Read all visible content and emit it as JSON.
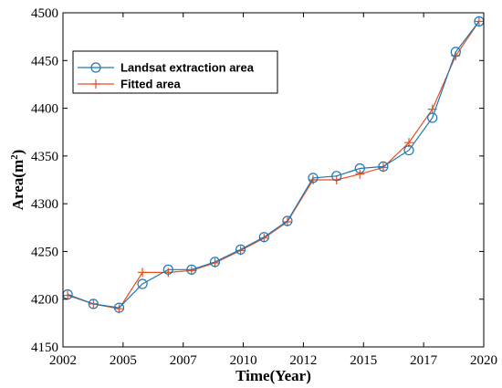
{
  "chart_data": {
    "type": "line",
    "xlabel": "Time(Year)",
    "ylabel_base": "Area(m",
    "ylabel_sup": "2",
    "ylabel_close": ")",
    "xlim": [
      2002,
      2020
    ],
    "ylim": [
      4150,
      4500
    ],
    "x_ticks": [
      "2002",
      "2005",
      "2007",
      "2010",
      "2012",
      "2015",
      "2017",
      "2020"
    ],
    "y_ticks": [
      "4150",
      "4200",
      "4250",
      "4300",
      "4350",
      "4400",
      "4450",
      "4500"
    ],
    "grid": false,
    "legend_position": "top-left",
    "series": [
      {
        "name": "Landsat extraction area",
        "color": "#1f77b4",
        "marker": "circle",
        "x": [
          2002.2,
          2003.3,
          2004.4,
          2005.4,
          2006.5,
          2007.5,
          2008.5,
          2009.6,
          2010.6,
          2011.6,
          2012.7,
          2013.7,
          2014.7,
          2015.7,
          2016.8,
          2017.8,
          2018.8,
          2019.8
        ],
        "y": [
          4205,
          4195,
          4191,
          4216,
          4231,
          4231,
          4239,
          4252,
          4265,
          4282,
          4327,
          4329,
          4337,
          4339,
          4356,
          4390,
          4459,
          4491
        ]
      },
      {
        "name": "Fitted area",
        "color": "#e8501e",
        "marker": "plus",
        "x": [
          2002.2,
          2003.3,
          2004.4,
          2005.4,
          2006.5,
          2007.5,
          2008.5,
          2009.6,
          2010.6,
          2011.6,
          2012.7,
          2013.7,
          2014.7,
          2015.7,
          2016.8,
          2017.8,
          2018.8,
          2019.8
        ],
        "y": [
          4204,
          4195,
          4190,
          4228,
          4228,
          4230,
          4238,
          4251,
          4264,
          4281,
          4325,
          4325,
          4331,
          4338,
          4364,
          4399,
          4455,
          4491
        ]
      }
    ]
  }
}
